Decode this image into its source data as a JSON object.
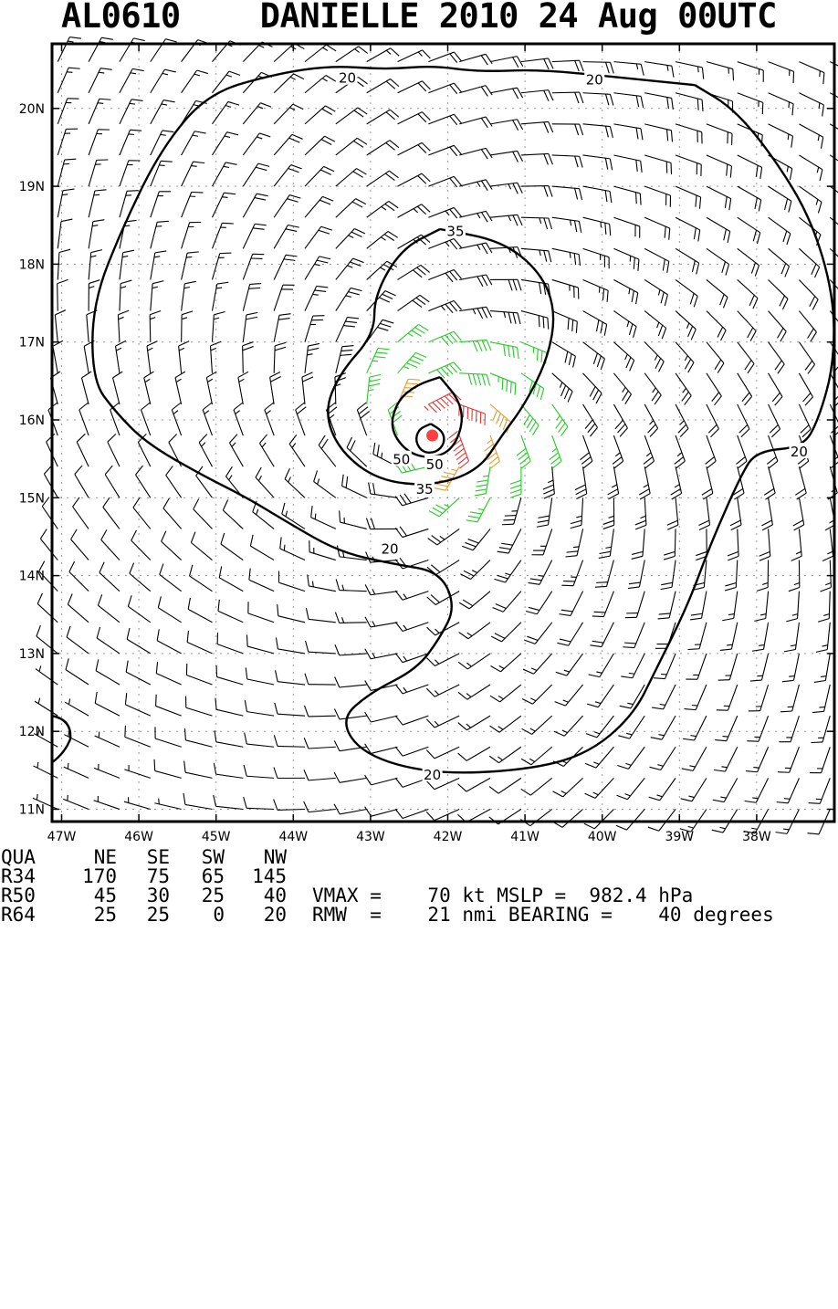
{
  "header": {
    "title": "AL0610    DANIELLE 2010 24 Aug 00UTC"
  },
  "colors": {
    "frame": "#000000",
    "grid": "#999999",
    "barb_weak": "#000000",
    "barb_ts": "#22cc22",
    "barb_50": "#e69a2e",
    "barb_64": "#e83333",
    "center": "#ff4040"
  },
  "chart_data": {
    "type": "wind-barb map",
    "title": "AL0610    DANIELLE 2010 24 Aug 00UTC",
    "lon_range": [
      -47.0,
      -37.0
    ],
    "lat_range": [
      11.0,
      20.8
    ],
    "x_ticks": [
      {
        "value": -47,
        "label": "47W"
      },
      {
        "value": -46,
        "label": "46W"
      },
      {
        "value": -45,
        "label": "45W"
      },
      {
        "value": -44,
        "label": "44W"
      },
      {
        "value": -43,
        "label": "43W"
      },
      {
        "value": -42,
        "label": "42W"
      },
      {
        "value": -41,
        "label": "41W"
      },
      {
        "value": -40,
        "label": "40W"
      },
      {
        "value": -39,
        "label": "39W"
      },
      {
        "value": -38,
        "label": "38W"
      }
    ],
    "y_ticks": [
      {
        "value": 11,
        "label": "11N"
      },
      {
        "value": 12,
        "label": "12N"
      },
      {
        "value": 13,
        "label": "13N"
      },
      {
        "value": 14,
        "label": "14N"
      },
      {
        "value": 15,
        "label": "15N"
      },
      {
        "value": 16,
        "label": "16N"
      },
      {
        "value": 17,
        "label": "17N"
      },
      {
        "value": 18,
        "label": "18N"
      },
      {
        "value": 19,
        "label": "19N"
      },
      {
        "value": 20,
        "label": "20N"
      }
    ],
    "grid": true,
    "center": {
      "lon": -42.2,
      "lat": 15.8
    },
    "vmax_kt": 70,
    "rmw_nmi": 21,
    "contours": [
      {
        "label": "20",
        "value": 20,
        "points": [
          [
            -38.8,
            20.3
          ],
          [
            -39.8,
            20.4
          ],
          [
            -40.8,
            20.5
          ],
          [
            -41.6,
            20.47
          ],
          [
            -42.2,
            20.55
          ],
          [
            -42.8,
            20.5
          ],
          [
            -43.5,
            20.55
          ],
          [
            -44.2,
            20.45
          ],
          [
            -45.1,
            20.2
          ],
          [
            -45.7,
            19.5
          ],
          [
            -46.2,
            18.5
          ],
          [
            -46.6,
            17.5
          ],
          [
            -46.6,
            16.5
          ],
          [
            -46.3,
            16.1
          ],
          [
            -45.9,
            15.7
          ],
          [
            -45.2,
            15.3
          ],
          [
            -44.6,
            15.0
          ],
          [
            -44.1,
            14.7
          ],
          [
            -43.4,
            14.3
          ],
          [
            -42.7,
            14.15
          ],
          [
            -42.1,
            14.05
          ],
          [
            -41.9,
            13.6
          ],
          [
            -42.1,
            13.2
          ],
          [
            -42.4,
            12.8
          ],
          [
            -43.0,
            12.5
          ],
          [
            -43.4,
            12.15
          ],
          [
            -43.1,
            11.7
          ],
          [
            -42.2,
            11.45
          ],
          [
            -41.0,
            11.5
          ],
          [
            -40.2,
            11.7
          ],
          [
            -39.6,
            12.2
          ],
          [
            -39.3,
            12.8
          ],
          [
            -38.9,
            13.6
          ],
          [
            -38.6,
            14.4
          ],
          [
            -38.2,
            15.3
          ],
          [
            -38.0,
            15.6
          ],
          [
            -37.4,
            15.65
          ],
          [
            -37.2,
            16.0
          ],
          [
            -37.0,
            16.7
          ],
          [
            -37.0,
            17.6
          ],
          [
            -37.3,
            18.6
          ],
          [
            -37.8,
            19.4
          ],
          [
            -38.3,
            20.0
          ],
          [
            -38.8,
            20.3
          ]
        ]
      },
      {
        "label": "35",
        "value": 35,
        "points": [
          [
            -42.1,
            18.45
          ],
          [
            -41.3,
            18.3
          ],
          [
            -40.8,
            17.9
          ],
          [
            -40.6,
            17.4
          ],
          [
            -40.7,
            16.8
          ],
          [
            -41.0,
            16.2
          ],
          [
            -41.3,
            15.8
          ],
          [
            -41.6,
            15.35
          ],
          [
            -42.2,
            15.15
          ],
          [
            -42.9,
            15.22
          ],
          [
            -43.4,
            15.6
          ],
          [
            -43.6,
            16.1
          ],
          [
            -43.4,
            16.6
          ],
          [
            -42.95,
            17.1
          ],
          [
            -42.95,
            17.6
          ],
          [
            -42.6,
            18.2
          ],
          [
            -42.1,
            18.45
          ]
        ]
      },
      {
        "label": "50",
        "value": 50,
        "points": [
          [
            -42.1,
            16.55
          ],
          [
            -41.85,
            16.25
          ],
          [
            -41.8,
            15.95
          ],
          [
            -41.95,
            15.6
          ],
          [
            -42.25,
            15.5
          ],
          [
            -42.55,
            15.6
          ],
          [
            -42.75,
            15.9
          ],
          [
            -42.65,
            16.25
          ],
          [
            -42.4,
            16.45
          ],
          [
            -42.1,
            16.55
          ]
        ]
      },
      {
        "label": "50",
        "value": 50,
        "points": [
          [
            -42.22,
            15.95
          ],
          [
            -42.06,
            15.85
          ],
          [
            -42.04,
            15.7
          ],
          [
            -42.15,
            15.58
          ],
          [
            -42.32,
            15.58
          ],
          [
            -42.42,
            15.72
          ],
          [
            -42.38,
            15.88
          ],
          [
            -42.22,
            15.95
          ]
        ]
      }
    ],
    "contour_labels": [
      {
        "text": "20",
        "lon": -43.3,
        "lat": 20.4
      },
      {
        "text": "20",
        "lon": -40.1,
        "lat": 20.38
      },
      {
        "text": "35",
        "lon": -41.9,
        "lat": 18.43
      },
      {
        "text": "50",
        "lon": -42.6,
        "lat": 15.5
      },
      {
        "text": "50",
        "lon": -42.17,
        "lat": 15.44
      },
      {
        "text": "35",
        "lon": -42.3,
        "lat": 15.12
      },
      {
        "text": "20",
        "lon": -42.75,
        "lat": 14.35
      },
      {
        "text": "20",
        "lon": -37.45,
        "lat": 15.6
      },
      {
        "text": "20",
        "lon": -42.2,
        "lat": 11.45
      }
    ]
  },
  "table": {
    "header": [
      "QUA",
      "NE",
      "SE",
      "SW",
      "NW"
    ],
    "rows": [
      {
        "label": "R34",
        "values": [
          "170",
          "75",
          "65",
          "145"
        ]
      },
      {
        "label": "R50",
        "values": [
          "45",
          "30",
          "25",
          "40"
        ]
      },
      {
        "label": "R64",
        "values": [
          "25",
          "25",
          "0",
          "20"
        ]
      }
    ]
  },
  "stats": {
    "line1": "VMAX =    70 kt MSLP =  982.4 hPa",
    "line2": "RMW  =    21 nmi BEARING =    40 degrees"
  }
}
